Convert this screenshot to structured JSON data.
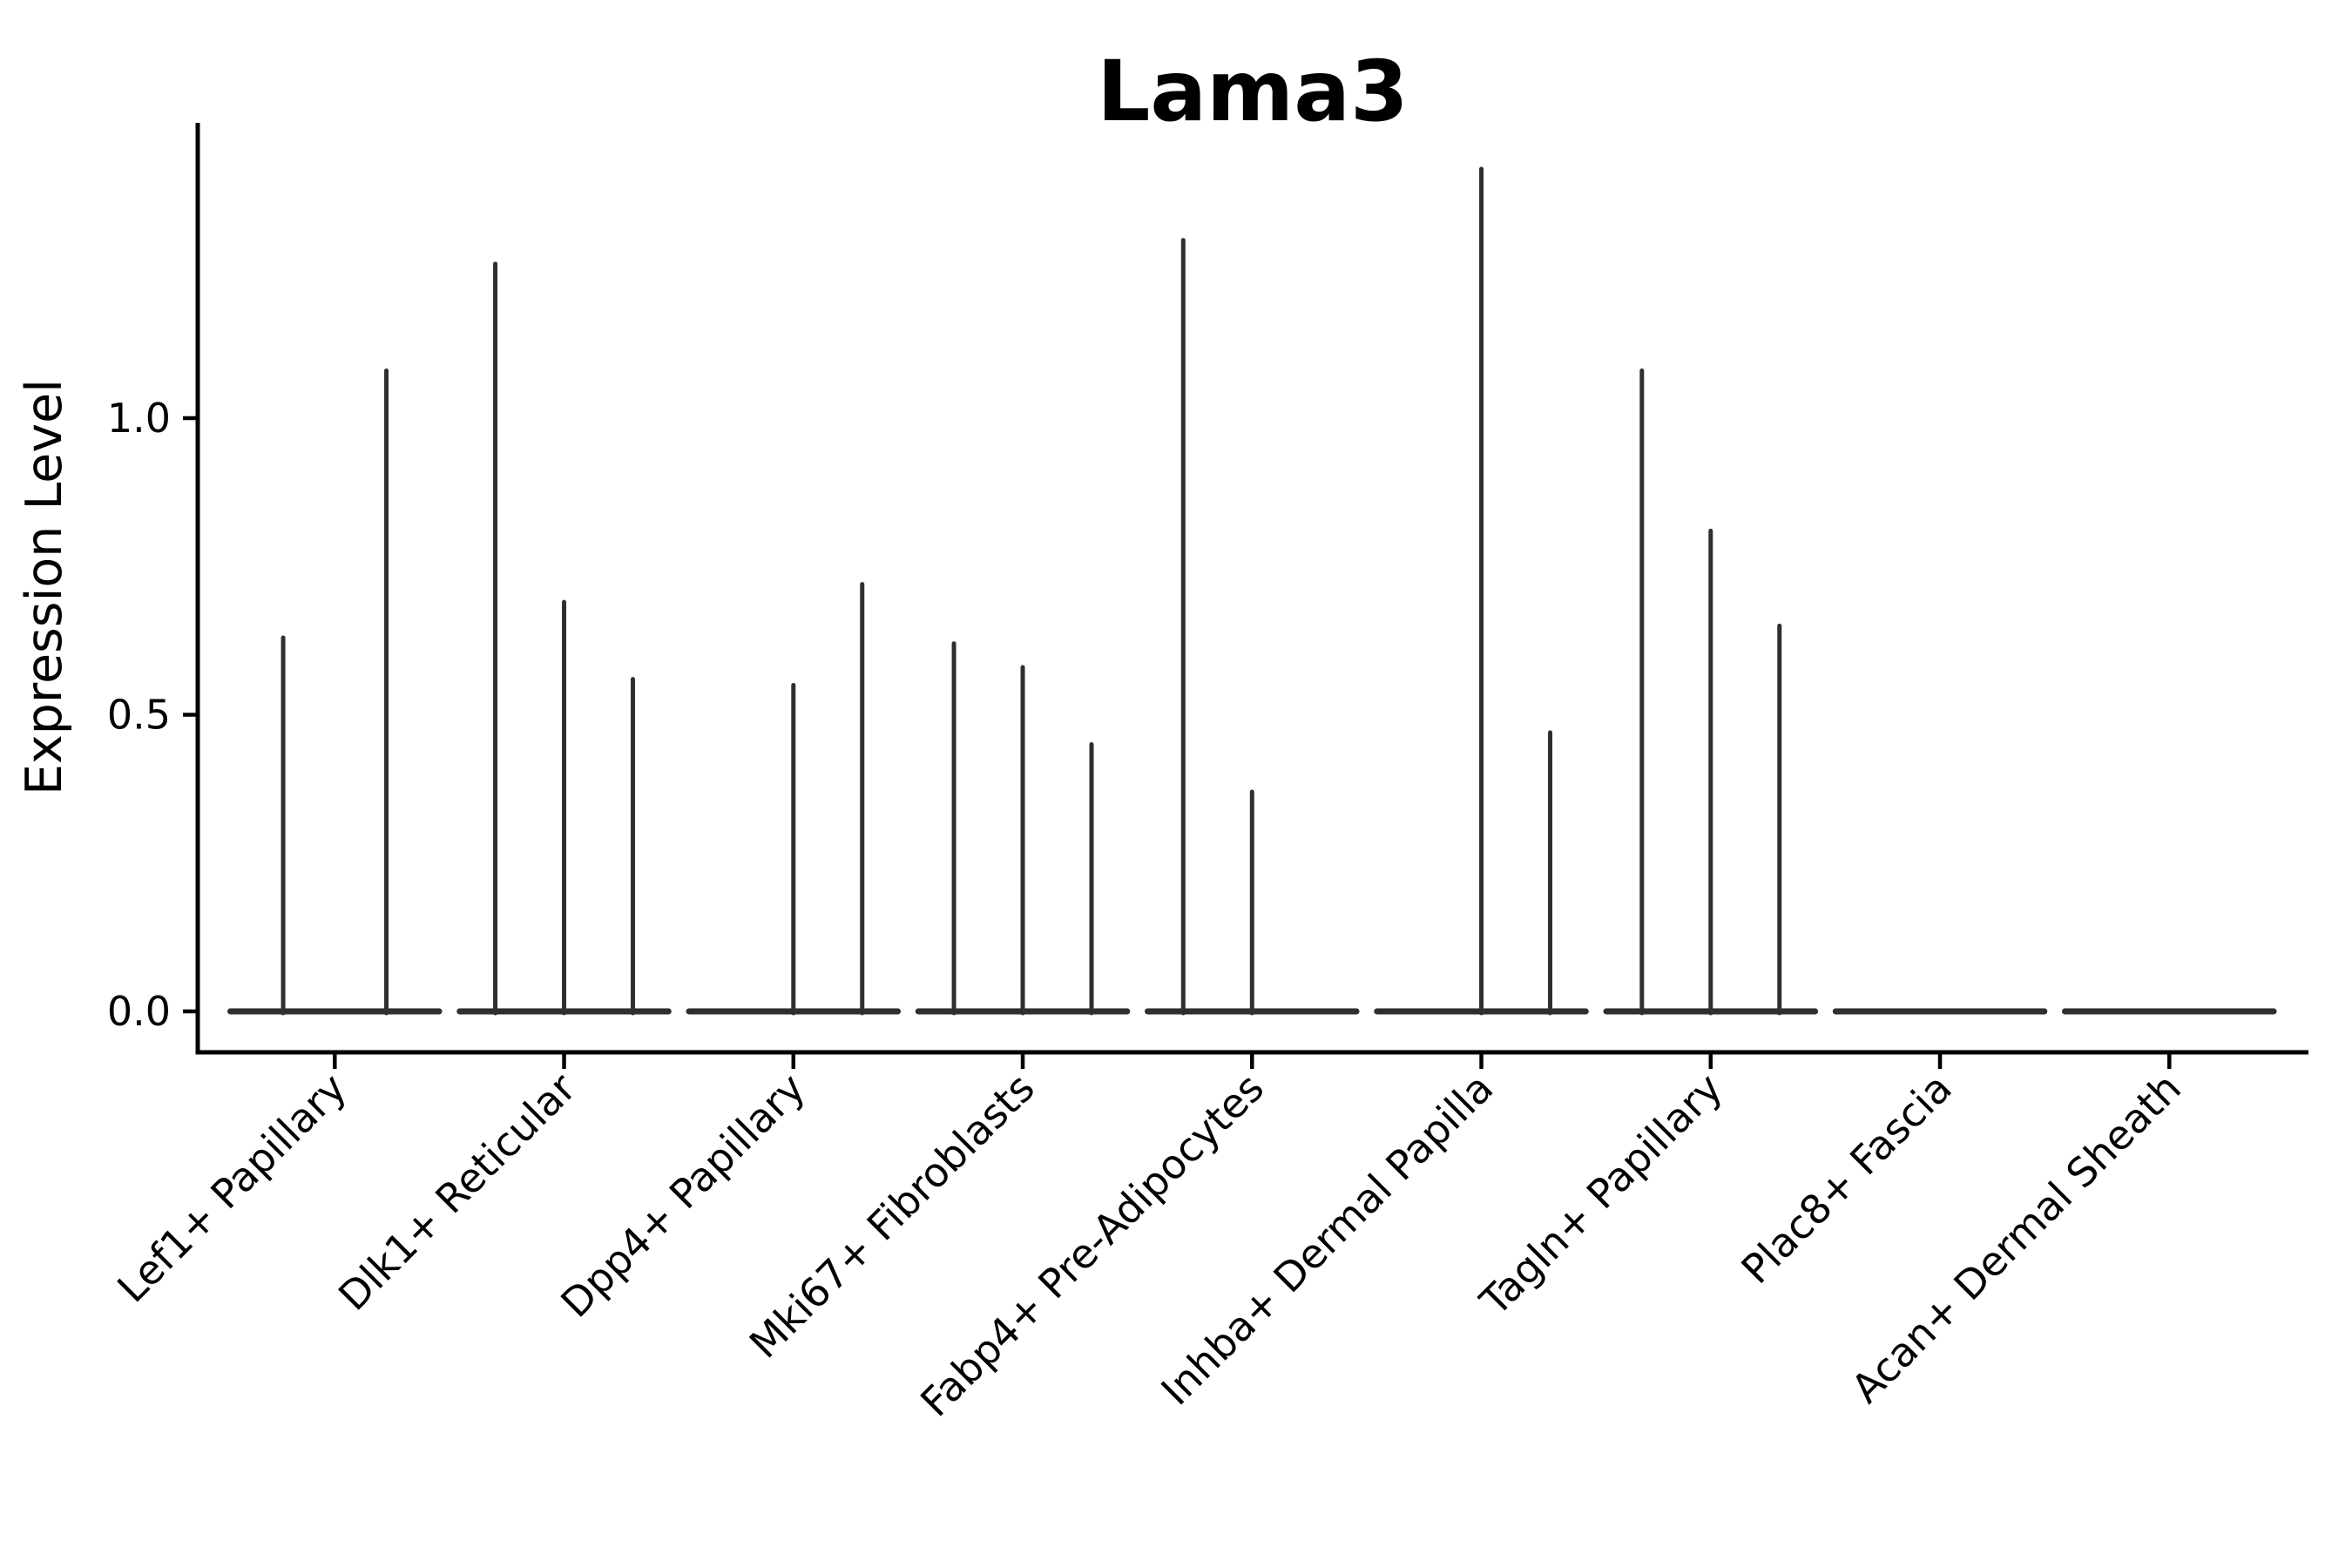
{
  "title": "Lama3",
  "y_axis": {
    "label": "Expression Level",
    "ticks": [
      {
        "label": "0.0",
        "value": 0.0
      },
      {
        "label": "0.5",
        "value": 0.5
      },
      {
        "label": "1.0",
        "value": 1.0
      }
    ]
  },
  "chart_data": {
    "type": "violin",
    "title": "Lama3",
    "xlabel": "",
    "ylabel": "Expression Level",
    "ylim": [
      -0.07,
      1.5
    ],
    "yticks": [
      0.0,
      0.5,
      1.0
    ],
    "grid": false,
    "legend": "none",
    "violin_color": "#2f2f2f",
    "axis_color": "#000000",
    "base_halfwidth_units": 0.455,
    "categories": [
      "Lef1+ Papillary",
      "Dlk1+ Reticular",
      "Dpp4+ Papillary",
      "Mki67+ Fibroblasts",
      "Fabp4+ Pre-Adipocytes",
      "Inhba+ Dermal Papilla",
      "Tagln+ Papillary",
      "Plac8+ Fascia",
      "Acan+ Dermal Sheath"
    ],
    "groups": [
      {
        "category": "Lef1+ Papillary",
        "violins": [
          {
            "offset": -0.225,
            "max": 0.63
          },
          {
            "offset": 0.225,
            "max": 1.08
          }
        ]
      },
      {
        "category": "Dlk1+ Reticular",
        "violins": [
          {
            "offset": -0.3,
            "max": 1.26
          },
          {
            "offset": 0.0,
            "max": 0.69
          },
          {
            "offset": 0.3,
            "max": 0.56
          }
        ]
      },
      {
        "category": "Dpp4+ Papillary",
        "violins": [
          {
            "offset": 0.0,
            "max": 0.55
          },
          {
            "offset": 0.3,
            "max": 0.72
          }
        ]
      },
      {
        "category": "Mki67+ Fibroblasts",
        "violins": [
          {
            "offset": -0.3,
            "max": 0.62
          },
          {
            "offset": 0.0,
            "max": 0.58
          },
          {
            "offset": 0.3,
            "max": 0.45
          }
        ]
      },
      {
        "category": "Fabp4+ Pre-Adipocytes",
        "violins": [
          {
            "offset": -0.3,
            "max": 1.3
          },
          {
            "offset": 0.0,
            "max": 0.37
          }
        ]
      },
      {
        "category": "Inhba+ Dermal Papilla",
        "violins": [
          {
            "offset": 0.0,
            "max": 1.42
          },
          {
            "offset": 0.3,
            "max": 0.47
          }
        ]
      },
      {
        "category": "Tagln+ Papillary",
        "violins": [
          {
            "offset": -0.3,
            "max": 1.08
          },
          {
            "offset": 0.0,
            "max": 0.81
          },
          {
            "offset": 0.3,
            "max": 0.65
          }
        ]
      },
      {
        "category": "Plac8+ Fascia",
        "violins": []
      },
      {
        "category": "Acan+ Dermal Sheath",
        "violins": []
      }
    ]
  }
}
